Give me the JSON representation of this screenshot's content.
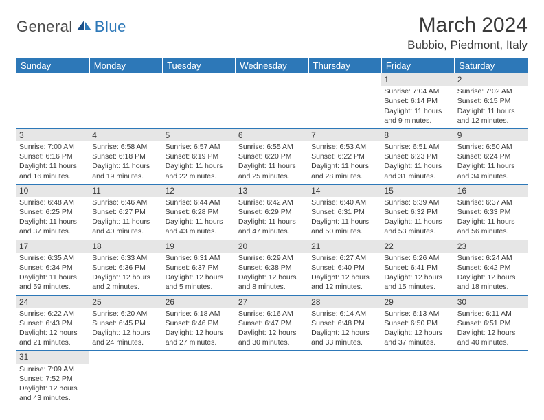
{
  "logo": {
    "word1": "General",
    "word2": "Blue",
    "accent": "#2d78b8",
    "grey": "#4a4a4a"
  },
  "title": "March 2024",
  "location": "Bubbio, Piedmont, Italy",
  "header_bg": "#2d78b8",
  "header_fg": "#ffffff",
  "daynum_bg": "#e6e6e6",
  "text_color": "#3a3a3a",
  "row_border": "#2d78b8",
  "weekdays": [
    "Sunday",
    "Monday",
    "Tuesday",
    "Wednesday",
    "Thursday",
    "Friday",
    "Saturday"
  ],
  "font_family": "Arial",
  "cell_fontsize": 10.5,
  "header_fontsize": 13,
  "title_fontsize": 30,
  "location_fontsize": 17,
  "weeks": [
    [
      null,
      null,
      null,
      null,
      null,
      {
        "n": "1",
        "sr": "7:04 AM",
        "ss": "6:14 PM",
        "dl": "11 hours and 9 minutes."
      },
      {
        "n": "2",
        "sr": "7:02 AM",
        "ss": "6:15 PM",
        "dl": "11 hours and 12 minutes."
      }
    ],
    [
      {
        "n": "3",
        "sr": "7:00 AM",
        "ss": "6:16 PM",
        "dl": "11 hours and 16 minutes."
      },
      {
        "n": "4",
        "sr": "6:58 AM",
        "ss": "6:18 PM",
        "dl": "11 hours and 19 minutes."
      },
      {
        "n": "5",
        "sr": "6:57 AM",
        "ss": "6:19 PM",
        "dl": "11 hours and 22 minutes."
      },
      {
        "n": "6",
        "sr": "6:55 AM",
        "ss": "6:20 PM",
        "dl": "11 hours and 25 minutes."
      },
      {
        "n": "7",
        "sr": "6:53 AM",
        "ss": "6:22 PM",
        "dl": "11 hours and 28 minutes."
      },
      {
        "n": "8",
        "sr": "6:51 AM",
        "ss": "6:23 PM",
        "dl": "11 hours and 31 minutes."
      },
      {
        "n": "9",
        "sr": "6:50 AM",
        "ss": "6:24 PM",
        "dl": "11 hours and 34 minutes."
      }
    ],
    [
      {
        "n": "10",
        "sr": "6:48 AM",
        "ss": "6:25 PM",
        "dl": "11 hours and 37 minutes."
      },
      {
        "n": "11",
        "sr": "6:46 AM",
        "ss": "6:27 PM",
        "dl": "11 hours and 40 minutes."
      },
      {
        "n": "12",
        "sr": "6:44 AM",
        "ss": "6:28 PM",
        "dl": "11 hours and 43 minutes."
      },
      {
        "n": "13",
        "sr": "6:42 AM",
        "ss": "6:29 PM",
        "dl": "11 hours and 47 minutes."
      },
      {
        "n": "14",
        "sr": "6:40 AM",
        "ss": "6:31 PM",
        "dl": "11 hours and 50 minutes."
      },
      {
        "n": "15",
        "sr": "6:39 AM",
        "ss": "6:32 PM",
        "dl": "11 hours and 53 minutes."
      },
      {
        "n": "16",
        "sr": "6:37 AM",
        "ss": "6:33 PM",
        "dl": "11 hours and 56 minutes."
      }
    ],
    [
      {
        "n": "17",
        "sr": "6:35 AM",
        "ss": "6:34 PM",
        "dl": "11 hours and 59 minutes."
      },
      {
        "n": "18",
        "sr": "6:33 AM",
        "ss": "6:36 PM",
        "dl": "12 hours and 2 minutes."
      },
      {
        "n": "19",
        "sr": "6:31 AM",
        "ss": "6:37 PM",
        "dl": "12 hours and 5 minutes."
      },
      {
        "n": "20",
        "sr": "6:29 AM",
        "ss": "6:38 PM",
        "dl": "12 hours and 8 minutes."
      },
      {
        "n": "21",
        "sr": "6:27 AM",
        "ss": "6:40 PM",
        "dl": "12 hours and 12 minutes."
      },
      {
        "n": "22",
        "sr": "6:26 AM",
        "ss": "6:41 PM",
        "dl": "12 hours and 15 minutes."
      },
      {
        "n": "23",
        "sr": "6:24 AM",
        "ss": "6:42 PM",
        "dl": "12 hours and 18 minutes."
      }
    ],
    [
      {
        "n": "24",
        "sr": "6:22 AM",
        "ss": "6:43 PM",
        "dl": "12 hours and 21 minutes."
      },
      {
        "n": "25",
        "sr": "6:20 AM",
        "ss": "6:45 PM",
        "dl": "12 hours and 24 minutes."
      },
      {
        "n": "26",
        "sr": "6:18 AM",
        "ss": "6:46 PM",
        "dl": "12 hours and 27 minutes."
      },
      {
        "n": "27",
        "sr": "6:16 AM",
        "ss": "6:47 PM",
        "dl": "12 hours and 30 minutes."
      },
      {
        "n": "28",
        "sr": "6:14 AM",
        "ss": "6:48 PM",
        "dl": "12 hours and 33 minutes."
      },
      {
        "n": "29",
        "sr": "6:13 AM",
        "ss": "6:50 PM",
        "dl": "12 hours and 37 minutes."
      },
      {
        "n": "30",
        "sr": "6:11 AM",
        "ss": "6:51 PM",
        "dl": "12 hours and 40 minutes."
      }
    ],
    [
      {
        "n": "31",
        "sr": "7:09 AM",
        "ss": "7:52 PM",
        "dl": "12 hours and 43 minutes."
      },
      null,
      null,
      null,
      null,
      null,
      null
    ]
  ],
  "labels": {
    "sunrise": "Sunrise:",
    "sunset": "Sunset:",
    "daylight": "Daylight:"
  }
}
